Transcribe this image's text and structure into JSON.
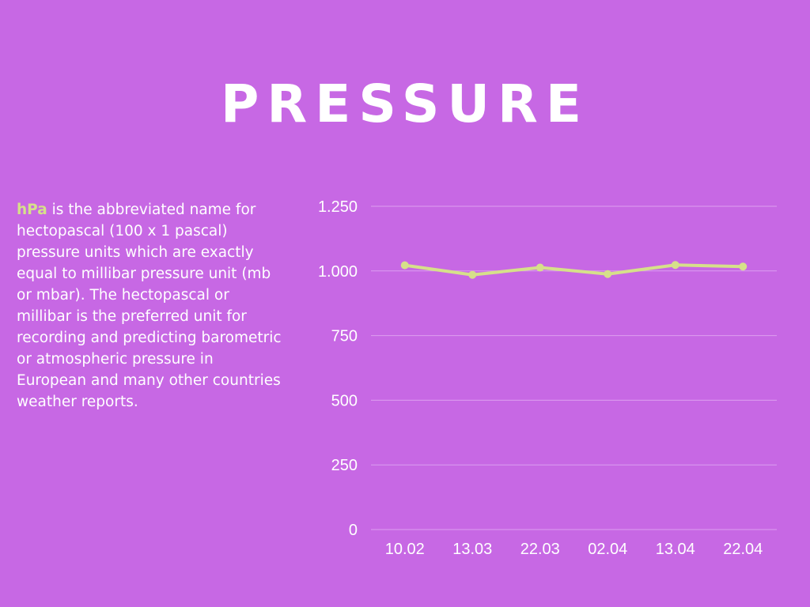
{
  "title": "PRESSURE",
  "description": {
    "highlight": "hPa",
    "text": " is the abbreviated name for hectopascal (100 x 1 pascal) pressure units which are exactly equal to millibar pressure unit (mb or mbar). The hectopascal or millibar is the preferred unit for recording and predicting barometric or atmospheric pressure in European and many other countries weather reports."
  },
  "colors": {
    "background": "#c768e4",
    "line": "#d6e08a",
    "grid": "#dc9ef0",
    "highlight": "#d6e08a"
  },
  "chart_data": {
    "type": "line",
    "categories": [
      "10.02",
      "13.03",
      "22.03",
      "02.04",
      "13.04",
      "22.04"
    ],
    "series": [
      {
        "values": [
          1022,
          985,
          1013,
          988,
          1023,
          1017
        ]
      }
    ],
    "yticks": [
      0,
      250,
      500,
      750,
      1000,
      1250
    ],
    "ytick_labels": [
      "0",
      "250",
      "500",
      "750",
      "1.000",
      "1.250"
    ],
    "ylim": [
      0,
      1250
    ],
    "grid": true,
    "legend": "none"
  }
}
